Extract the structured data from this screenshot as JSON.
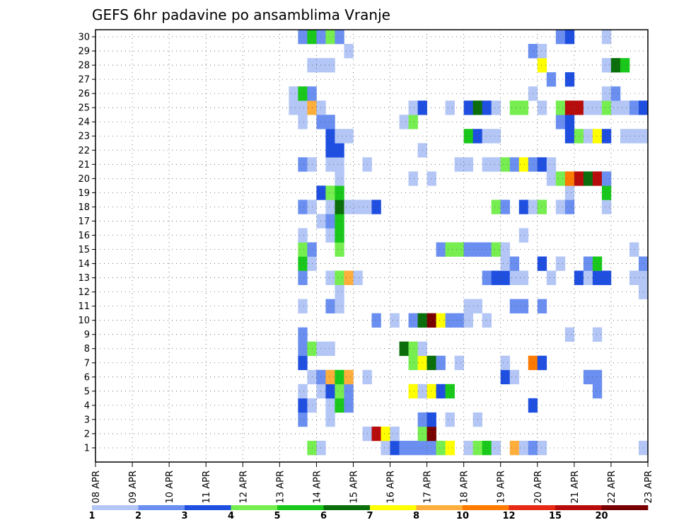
{
  "chart_data": {
    "type": "heatmap",
    "title": "GEFS 6hr padavine po ansamblima Vranje",
    "ylabel": "",
    "xlabel": "",
    "x_ticks": [
      "08 APR",
      "09 APR",
      "10 APR",
      "11 APR",
      "12 APR",
      "13 APR",
      "14 APR",
      "15 APR",
      "16 APR",
      "17 APR",
      "18 APR",
      "19 APR",
      "20 APR",
      "21 APR",
      "22 APR",
      "23 APR"
    ],
    "y_ticks": [
      "1",
      "2",
      "3",
      "4",
      "5",
      "6",
      "7",
      "8",
      "9",
      "10",
      "11",
      "12",
      "13",
      "14",
      "15",
      "16",
      "17",
      "18",
      "19",
      "20",
      "21",
      "22",
      "23",
      "24",
      "25",
      "26",
      "27",
      "28",
      "29",
      "30"
    ],
    "steps_per_day": 4,
    "total_steps": 60,
    "grid": true,
    "color_scale": {
      "labels": [
        "1",
        "2",
        "3",
        "4",
        "5",
        "6",
        "7",
        "8",
        "10",
        "12",
        "15",
        "20"
      ],
      "colors": [
        "#b3c6f5",
        "#6a8ff0",
        "#1f4fe0",
        "#76ee50",
        "#19c81a",
        "#0a6e0a",
        "#ffff00",
        "#ffae3c",
        "#ff7a00",
        "#e62a14",
        "#b80c0c",
        "#780000"
      ]
    },
    "cells": [
      [
        1,
        23,
        4
      ],
      [
        1,
        24,
        1
      ],
      [
        1,
        31,
        1
      ],
      [
        1,
        32,
        3
      ],
      [
        1,
        33,
        2
      ],
      [
        1,
        34,
        2
      ],
      [
        1,
        35,
        2
      ],
      [
        1,
        36,
        2
      ],
      [
        1,
        37,
        4
      ],
      [
        1,
        38,
        7
      ],
      [
        1,
        40,
        1
      ],
      [
        1,
        41,
        4
      ],
      [
        1,
        42,
        5
      ],
      [
        1,
        43,
        1
      ],
      [
        1,
        45,
        8
      ],
      [
        1,
        46,
        1
      ],
      [
        1,
        47,
        2
      ],
      [
        1,
        48,
        1
      ],
      [
        1,
        59,
        1
      ],
      [
        2,
        29,
        1
      ],
      [
        2,
        30,
        11
      ],
      [
        2,
        31,
        7
      ],
      [
        2,
        32,
        1
      ],
      [
        2,
        35,
        4
      ],
      [
        2,
        36,
        12
      ],
      [
        3,
        22,
        2
      ],
      [
        3,
        25,
        1
      ],
      [
        3,
        35,
        2
      ],
      [
        3,
        36,
        3
      ],
      [
        3,
        38,
        1
      ],
      [
        3,
        41,
        1
      ],
      [
        4,
        22,
        3
      ],
      [
        4,
        23,
        1
      ],
      [
        4,
        25,
        1
      ],
      [
        4,
        26,
        5
      ],
      [
        4,
        27,
        2
      ],
      [
        4,
        47,
        3
      ],
      [
        5,
        22,
        1
      ],
      [
        5,
        24,
        1
      ],
      [
        5,
        25,
        3
      ],
      [
        5,
        26,
        4
      ],
      [
        5,
        27,
        2
      ],
      [
        5,
        34,
        7
      ],
      [
        5,
        35,
        1
      ],
      [
        5,
        36,
        7
      ],
      [
        5,
        37,
        3
      ],
      [
        5,
        38,
        5
      ],
      [
        5,
        54,
        2
      ],
      [
        6,
        23,
        1
      ],
      [
        6,
        24,
        2
      ],
      [
        6,
        25,
        8
      ],
      [
        6,
        26,
        5
      ],
      [
        6,
        27,
        8
      ],
      [
        6,
        29,
        1
      ],
      [
        6,
        44,
        3
      ],
      [
        6,
        45,
        1
      ],
      [
        6,
        53,
        2
      ],
      [
        6,
        54,
        2
      ],
      [
        7,
        22,
        3
      ],
      [
        7,
        34,
        4
      ],
      [
        7,
        35,
        7
      ],
      [
        7,
        36,
        6
      ],
      [
        7,
        37,
        2
      ],
      [
        7,
        39,
        1
      ],
      [
        7,
        44,
        1
      ],
      [
        7,
        47,
        9
      ],
      [
        7,
        48,
        3
      ],
      [
        8,
        22,
        2
      ],
      [
        8,
        23,
        4
      ],
      [
        8,
        24,
        1
      ],
      [
        8,
        25,
        1
      ],
      [
        8,
        33,
        6
      ],
      [
        8,
        34,
        4
      ],
      [
        8,
        35,
        1
      ],
      [
        9,
        22,
        2
      ],
      [
        9,
        51,
        1
      ],
      [
        9,
        54,
        1
      ],
      [
        10,
        30,
        2
      ],
      [
        10,
        32,
        1
      ],
      [
        10,
        34,
        2
      ],
      [
        10,
        35,
        6
      ],
      [
        10,
        36,
        12
      ],
      [
        10,
        37,
        7
      ],
      [
        10,
        38,
        2
      ],
      [
        10,
        39,
        2
      ],
      [
        10,
        40,
        1
      ],
      [
        10,
        42,
        1
      ],
      [
        11,
        22,
        1
      ],
      [
        11,
        25,
        2
      ],
      [
        11,
        26,
        1
      ],
      [
        11,
        40,
        1
      ],
      [
        11,
        41,
        1
      ],
      [
        11,
        45,
        2
      ],
      [
        11,
        46,
        2
      ],
      [
        11,
        48,
        2
      ],
      [
        12,
        26,
        1
      ],
      [
        12,
        59,
        1
      ],
      [
        13,
        22,
        2
      ],
      [
        13,
        25,
        1
      ],
      [
        13,
        26,
        4
      ],
      [
        13,
        27,
        8
      ],
      [
        13,
        28,
        1
      ],
      [
        13,
        42,
        2
      ],
      [
        13,
        43,
        3
      ],
      [
        13,
        44,
        3
      ],
      [
        13,
        45,
        1
      ],
      [
        13,
        46,
        1
      ],
      [
        13,
        49,
        1
      ],
      [
        13,
        52,
        3
      ],
      [
        13,
        53,
        1
      ],
      [
        13,
        54,
        3
      ],
      [
        13,
        55,
        3
      ],
      [
        13,
        58,
        1
      ],
      [
        13,
        59,
        1
      ],
      [
        14,
        22,
        5
      ],
      [
        14,
        23,
        1
      ],
      [
        14,
        44,
        1
      ],
      [
        14,
        45,
        2
      ],
      [
        14,
        48,
        3
      ],
      [
        14,
        50,
        1
      ],
      [
        14,
        53,
        2
      ],
      [
        14,
        54,
        5
      ],
      [
        14,
        59,
        2
      ],
      [
        15,
        22,
        4
      ],
      [
        15,
        23,
        2
      ],
      [
        15,
        26,
        4
      ],
      [
        15,
        37,
        2
      ],
      [
        15,
        38,
        4
      ],
      [
        15,
        39,
        4
      ],
      [
        15,
        40,
        2
      ],
      [
        15,
        41,
        2
      ],
      [
        15,
        42,
        2
      ],
      [
        15,
        43,
        4
      ],
      [
        15,
        44,
        1
      ],
      [
        15,
        58,
        1
      ],
      [
        16,
        22,
        1
      ],
      [
        16,
        25,
        1
      ],
      [
        16,
        26,
        5
      ],
      [
        16,
        46,
        1
      ],
      [
        17,
        24,
        1
      ],
      [
        17,
        25,
        2
      ],
      [
        17,
        26,
        5
      ],
      [
        18,
        22,
        2
      ],
      [
        18,
        23,
        1
      ],
      [
        18,
        25,
        1
      ],
      [
        18,
        26,
        6
      ],
      [
        18,
        27,
        1
      ],
      [
        18,
        28,
        1
      ],
      [
        18,
        29,
        1
      ],
      [
        18,
        30,
        3
      ],
      [
        18,
        43,
        4
      ],
      [
        18,
        44,
        2
      ],
      [
        18,
        46,
        3
      ],
      [
        18,
        47,
        1
      ],
      [
        18,
        48,
        4
      ],
      [
        18,
        50,
        1
      ],
      [
        18,
        51,
        2
      ],
      [
        18,
        55,
        1
      ],
      [
        19,
        24,
        3
      ],
      [
        19,
        25,
        4
      ],
      [
        19,
        26,
        5
      ],
      [
        19,
        51,
        1
      ],
      [
        19,
        55,
        5
      ],
      [
        20,
        26,
        1
      ],
      [
        20,
        34,
        1
      ],
      [
        20,
        36,
        1
      ],
      [
        20,
        49,
        1
      ],
      [
        20,
        50,
        4
      ],
      [
        20,
        51,
        9
      ],
      [
        20,
        52,
        11
      ],
      [
        20,
        53,
        6
      ],
      [
        20,
        54,
        11
      ],
      [
        20,
        55,
        2
      ],
      [
        21,
        22,
        2
      ],
      [
        21,
        23,
        1
      ],
      [
        21,
        25,
        1
      ],
      [
        21,
        26,
        1
      ],
      [
        21,
        29,
        1
      ],
      [
        21,
        39,
        1
      ],
      [
        21,
        40,
        1
      ],
      [
        21,
        42,
        1
      ],
      [
        21,
        43,
        1
      ],
      [
        21,
        44,
        4
      ],
      [
        21,
        45,
        2
      ],
      [
        21,
        46,
        7
      ],
      [
        21,
        47,
        2
      ],
      [
        21,
        48,
        3
      ],
      [
        21,
        49,
        1
      ],
      [
        22,
        25,
        3
      ],
      [
        22,
        26,
        3
      ],
      [
        22,
        35,
        1
      ],
      [
        23,
        25,
        3
      ],
      [
        23,
        26,
        1
      ],
      [
        23,
        27,
        1
      ],
      [
        23,
        40,
        5
      ],
      [
        23,
        41,
        3
      ],
      [
        23,
        42,
        1
      ],
      [
        23,
        43,
        1
      ],
      [
        23,
        51,
        3
      ],
      [
        23,
        52,
        4
      ],
      [
        23,
        53,
        1
      ],
      [
        23,
        54,
        7
      ],
      [
        23,
        55,
        3
      ],
      [
        23,
        57,
        1
      ],
      [
        23,
        58,
        1
      ],
      [
        23,
        59,
        1
      ],
      [
        24,
        22,
        1
      ],
      [
        24,
        24,
        2
      ],
      [
        24,
        25,
        2
      ],
      [
        24,
        33,
        1
      ],
      [
        24,
        34,
        4
      ],
      [
        24,
        50,
        2
      ],
      [
        24,
        51,
        3
      ],
      [
        25,
        21,
        1
      ],
      [
        25,
        22,
        1
      ],
      [
        25,
        23,
        8
      ],
      [
        25,
        24,
        1
      ],
      [
        25,
        34,
        1
      ],
      [
        25,
        35,
        3
      ],
      [
        25,
        38,
        1
      ],
      [
        25,
        40,
        3
      ],
      [
        25,
        41,
        6
      ],
      [
        25,
        42,
        3
      ],
      [
        25,
        43,
        1
      ],
      [
        25,
        45,
        4
      ],
      [
        25,
        46,
        4
      ],
      [
        25,
        48,
        1
      ],
      [
        25,
        50,
        4
      ],
      [
        25,
        51,
        11
      ],
      [
        25,
        52,
        11
      ],
      [
        25,
        53,
        1
      ],
      [
        25,
        54,
        1
      ],
      [
        25,
        55,
        4
      ],
      [
        25,
        56,
        1
      ],
      [
        25,
        57,
        1
      ],
      [
        25,
        58,
        2
      ],
      [
        25,
        59,
        3
      ],
      [
        26,
        21,
        1
      ],
      [
        26,
        22,
        5
      ],
      [
        26,
        23,
        2
      ],
      [
        26,
        47,
        1
      ],
      [
        26,
        55,
        1
      ],
      [
        26,
        56,
        2
      ],
      [
        27,
        49,
        2
      ],
      [
        27,
        51,
        3
      ],
      [
        28,
        23,
        1
      ],
      [
        28,
        24,
        1
      ],
      [
        28,
        25,
        1
      ],
      [
        28,
        48,
        7
      ],
      [
        28,
        55,
        1
      ],
      [
        28,
        56,
        6
      ],
      [
        28,
        57,
        5
      ],
      [
        29,
        27,
        1
      ],
      [
        29,
        47,
        2
      ],
      [
        29,
        48,
        1
      ],
      [
        30,
        22,
        2
      ],
      [
        30,
        23,
        5
      ],
      [
        30,
        24,
        2
      ],
      [
        30,
        25,
        4
      ],
      [
        30,
        26,
        2
      ],
      [
        30,
        50,
        2
      ],
      [
        30,
        51,
        3
      ],
      [
        30,
        55,
        1
      ]
    ]
  }
}
